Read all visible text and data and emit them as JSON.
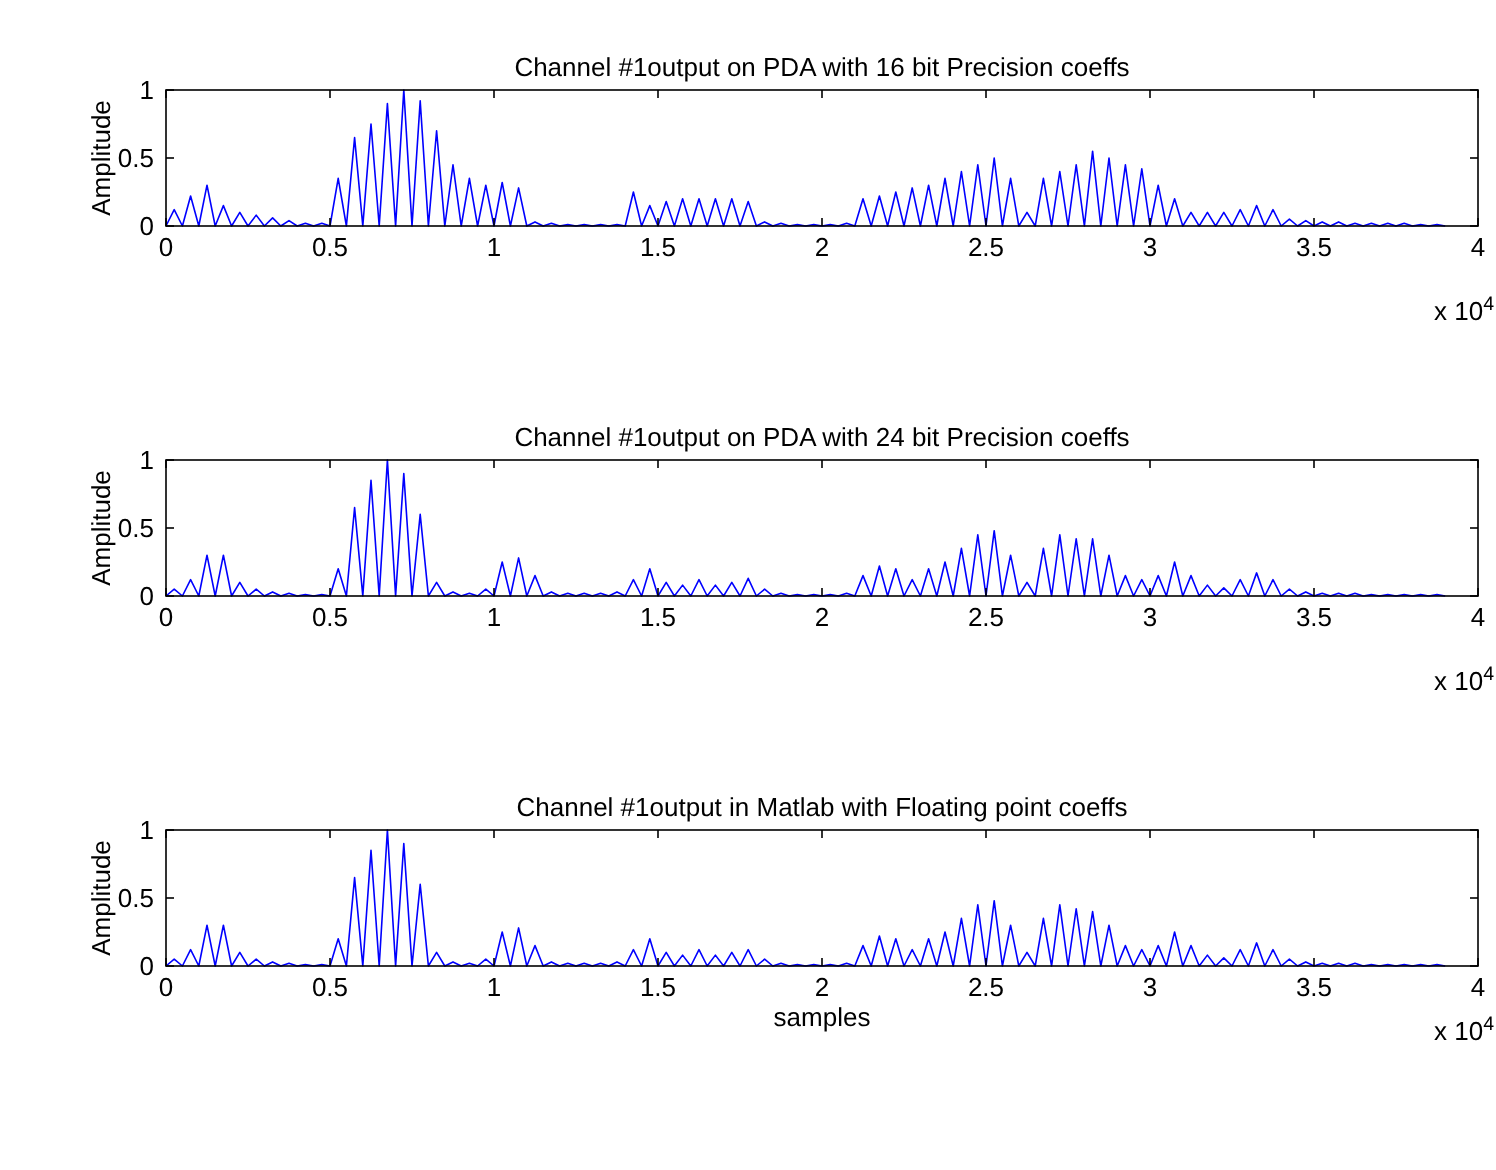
{
  "chart_data": [
    {
      "type": "line",
      "title": "Channel #1output on PDA with 16 bit Precision coeffs",
      "ylabel": "Amplitude",
      "annotations": [
        "x 10$^{4}$"
      ],
      "x": [
        0,
        0.025,
        0.05,
        0.075,
        0.1,
        0.125,
        0.15,
        0.175,
        0.2,
        0.225,
        0.25,
        0.275,
        0.3,
        0.325,
        0.35,
        0.375,
        0.4,
        0.425,
        0.45,
        0.475,
        0.5,
        0.525,
        0.55,
        0.575,
        0.6,
        0.625,
        0.65,
        0.675,
        0.7,
        0.725,
        0.75,
        0.775,
        0.8,
        0.825,
        0.85,
        0.875,
        0.9,
        0.925,
        0.95,
        0.975,
        1,
        1.025,
        1.05,
        1.075,
        1.1,
        1.125,
        1.15,
        1.175,
        1.2,
        1.225,
        1.25,
        1.275,
        1.3,
        1.325,
        1.35,
        1.375,
        1.4,
        1.425,
        1.45,
        1.475,
        1.5,
        1.525,
        1.55,
        1.575,
        1.6,
        1.625,
        1.65,
        1.675,
        1.7,
        1.725,
        1.75,
        1.775,
        1.8,
        1.825,
        1.85,
        1.875,
        1.9,
        1.925,
        1.95,
        1.975,
        2,
        2.025,
        2.05,
        2.075,
        2.1,
        2.125,
        2.15,
        2.175,
        2.2,
        2.225,
        2.25,
        2.275,
        2.3,
        2.325,
        2.35,
        2.375,
        2.4,
        2.425,
        2.45,
        2.475,
        2.5,
        2.525,
        2.55,
        2.575,
        2.6,
        2.625,
        2.65,
        2.675,
        2.7,
        2.725,
        2.75,
        2.775,
        2.8,
        2.825,
        2.85,
        2.875,
        2.9,
        2.925,
        2.95,
        2.975,
        3,
        3.025,
        3.05,
        3.075,
        3.1,
        3.125,
        3.15,
        3.175,
        3.2,
        3.225,
        3.25,
        3.275,
        3.3,
        3.325,
        3.35,
        3.375,
        3.4,
        3.425,
        3.45,
        3.475,
        3.5,
        3.525,
        3.55,
        3.575,
        3.6,
        3.625,
        3.65,
        3.675,
        3.7,
        3.725,
        3.75,
        3.775,
        3.8,
        3.825,
        3.85,
        3.875,
        3.9
      ],
      "series": [
        {
          "color": "#0000ff",
          "values": [
            0,
            0.12,
            0,
            0.22,
            0,
            0.3,
            0,
            0.15,
            0,
            0.1,
            0,
            0.08,
            0,
            0.06,
            0,
            0.04,
            0,
            0.02,
            0,
            0.02,
            0,
            0.35,
            0,
            0.65,
            0,
            0.75,
            0,
            0.9,
            0,
            1.0,
            0,
            0.92,
            0,
            0.7,
            0,
            0.45,
            0,
            0.35,
            0,
            0.3,
            0,
            0.32,
            0,
            0.28,
            0,
            0.03,
            0,
            0.02,
            0,
            0.01,
            0,
            0.01,
            0,
            0.01,
            0,
            0.01,
            0,
            0.25,
            0,
            0.15,
            0,
            0.18,
            0,
            0.2,
            0,
            0.2,
            0,
            0.2,
            0,
            0.2,
            0,
            0.18,
            0,
            0.03,
            0,
            0.02,
            0,
            0.01,
            0,
            0.01,
            0,
            0.01,
            0,
            0.02,
            0,
            0.2,
            0,
            0.22,
            0,
            0.25,
            0,
            0.28,
            0,
            0.3,
            0,
            0.35,
            0,
            0.4,
            0,
            0.45,
            0,
            0.5,
            0,
            0.35,
            0,
            0.1,
            0,
            0.35,
            0,
            0.4,
            0,
            0.45,
            0,
            0.55,
            0,
            0.5,
            0,
            0.45,
            0,
            0.42,
            0,
            0.3,
            0,
            0.2,
            0,
            0.1,
            0,
            0.1,
            0,
            0.1,
            0,
            0.12,
            0,
            0.15,
            0,
            0.12,
            0,
            0.05,
            0,
            0.04,
            0,
            0.03,
            0,
            0.03,
            0,
            0.02,
            0,
            0.02,
            0,
            0.02,
            0,
            0.02,
            0,
            0.01,
            0,
            0.01,
            0
          ]
        }
      ],
      "xlim": [
        0,
        4
      ],
      "xticks": [
        0,
        0.5,
        1,
        1.5,
        2,
        2.5,
        3,
        3.5,
        4
      ],
      "ylim": [
        0,
        1
      ],
      "yticks": [
        0,
        0.5,
        1
      ],
      "grid": false,
      "marker": "none",
      "line_style": "solid"
    },
    {
      "type": "line",
      "title": "Channel #1output on PDA with 24 bit Precision coeffs",
      "ylabel": "Amplitude",
      "annotations": [
        "x 10$^{4}$"
      ],
      "x": [
        0,
        0.025,
        0.05,
        0.075,
        0.1,
        0.125,
        0.15,
        0.175,
        0.2,
        0.225,
        0.25,
        0.275,
        0.3,
        0.325,
        0.35,
        0.375,
        0.4,
        0.425,
        0.45,
        0.475,
        0.5,
        0.525,
        0.55,
        0.575,
        0.6,
        0.625,
        0.65,
        0.675,
        0.7,
        0.725,
        0.75,
        0.775,
        0.8,
        0.825,
        0.85,
        0.875,
        0.9,
        0.925,
        0.95,
        0.975,
        1,
        1.025,
        1.05,
        1.075,
        1.1,
        1.125,
        1.15,
        1.175,
        1.2,
        1.225,
        1.25,
        1.275,
        1.3,
        1.325,
        1.35,
        1.375,
        1.4,
        1.425,
        1.45,
        1.475,
        1.5,
        1.525,
        1.55,
        1.575,
        1.6,
        1.625,
        1.65,
        1.675,
        1.7,
        1.725,
        1.75,
        1.775,
        1.8,
        1.825,
        1.85,
        1.875,
        1.9,
        1.925,
        1.95,
        1.975,
        2,
        2.025,
        2.05,
        2.075,
        2.1,
        2.125,
        2.15,
        2.175,
        2.2,
        2.225,
        2.25,
        2.275,
        2.3,
        2.325,
        2.35,
        2.375,
        2.4,
        2.425,
        2.45,
        2.475,
        2.5,
        2.525,
        2.55,
        2.575,
        2.6,
        2.625,
        2.65,
        2.675,
        2.7,
        2.725,
        2.75,
        2.775,
        2.8,
        2.825,
        2.85,
        2.875,
        2.9,
        2.925,
        2.95,
        2.975,
        3,
        3.025,
        3.05,
        3.075,
        3.1,
        3.125,
        3.15,
        3.175,
        3.2,
        3.225,
        3.25,
        3.275,
        3.3,
        3.325,
        3.35,
        3.375,
        3.4,
        3.425,
        3.45,
        3.475,
        3.5,
        3.525,
        3.55,
        3.575,
        3.6,
        3.625,
        3.65,
        3.675,
        3.7,
        3.725,
        3.75,
        3.775,
        3.8,
        3.825,
        3.85,
        3.875,
        3.9
      ],
      "series": [
        {
          "color": "#0000ff",
          "values": [
            0,
            0.05,
            0,
            0.12,
            0,
            0.3,
            0,
            0.3,
            0,
            0.1,
            0,
            0.05,
            0,
            0.03,
            0,
            0.02,
            0,
            0.01,
            0,
            0.01,
            0,
            0.2,
            0,
            0.65,
            0,
            0.85,
            0,
            1.0,
            0,
            0.9,
            0,
            0.6,
            0,
            0.1,
            0,
            0.03,
            0,
            0.02,
            0,
            0.05,
            0,
            0.25,
            0,
            0.28,
            0,
            0.15,
            0,
            0.03,
            0,
            0.02,
            0,
            0.02,
            0,
            0.02,
            0,
            0.03,
            0,
            0.12,
            0,
            0.2,
            0,
            0.1,
            0,
            0.08,
            0,
            0.12,
            0,
            0.08,
            0,
            0.1,
            0,
            0.13,
            0,
            0.05,
            0,
            0.02,
            0,
            0.01,
            0,
            0.01,
            0,
            0.01,
            0,
            0.02,
            0,
            0.15,
            0,
            0.22,
            0,
            0.2,
            0,
            0.12,
            0,
            0.2,
            0,
            0.25,
            0,
            0.35,
            0,
            0.45,
            0,
            0.48,
            0,
            0.3,
            0,
            0.1,
            0,
            0.35,
            0,
            0.45,
            0,
            0.42,
            0,
            0.42,
            0,
            0.3,
            0,
            0.15,
            0,
            0.12,
            0,
            0.15,
            0,
            0.25,
            0,
            0.15,
            0,
            0.08,
            0,
            0.06,
            0,
            0.12,
            0,
            0.17,
            0,
            0.12,
            0,
            0.05,
            0,
            0.03,
            0,
            0.02,
            0,
            0.02,
            0,
            0.02,
            0,
            0.01,
            0,
            0.01,
            0,
            0.01,
            0,
            0.01,
            0,
            0.01,
            0
          ]
        }
      ],
      "xlim": [
        0,
        4
      ],
      "xticks": [
        0,
        0.5,
        1,
        1.5,
        2,
        2.5,
        3,
        3.5,
        4
      ],
      "ylim": [
        0,
        1
      ],
      "yticks": [
        0,
        0.5,
        1
      ],
      "grid": false,
      "marker": "none",
      "line_style": "solid"
    },
    {
      "type": "line",
      "title": "Channel #1output in Matlab with Floating point coeffs",
      "xlabel": "samples",
      "ylabel": "Amplitude",
      "annotations": [
        "x 10$^{4}$"
      ],
      "x": [
        0,
        0.025,
        0.05,
        0.075,
        0.1,
        0.125,
        0.15,
        0.175,
        0.2,
        0.225,
        0.25,
        0.275,
        0.3,
        0.325,
        0.35,
        0.375,
        0.4,
        0.425,
        0.45,
        0.475,
        0.5,
        0.525,
        0.55,
        0.575,
        0.6,
        0.625,
        0.65,
        0.675,
        0.7,
        0.725,
        0.75,
        0.775,
        0.8,
        0.825,
        0.85,
        0.875,
        0.9,
        0.925,
        0.95,
        0.975,
        1,
        1.025,
        1.05,
        1.075,
        1.1,
        1.125,
        1.15,
        1.175,
        1.2,
        1.225,
        1.25,
        1.275,
        1.3,
        1.325,
        1.35,
        1.375,
        1.4,
        1.425,
        1.45,
        1.475,
        1.5,
        1.525,
        1.55,
        1.575,
        1.6,
        1.625,
        1.65,
        1.675,
        1.7,
        1.725,
        1.75,
        1.775,
        1.8,
        1.825,
        1.85,
        1.875,
        1.9,
        1.925,
        1.95,
        1.975,
        2,
        2.025,
        2.05,
        2.075,
        2.1,
        2.125,
        2.15,
        2.175,
        2.2,
        2.225,
        2.25,
        2.275,
        2.3,
        2.325,
        2.35,
        2.375,
        2.4,
        2.425,
        2.45,
        2.475,
        2.5,
        2.525,
        2.55,
        2.575,
        2.6,
        2.625,
        2.65,
        2.675,
        2.7,
        2.725,
        2.75,
        2.775,
        2.8,
        2.825,
        2.85,
        2.875,
        2.9,
        2.925,
        2.95,
        2.975,
        3,
        3.025,
        3.05,
        3.075,
        3.1,
        3.125,
        3.15,
        3.175,
        3.2,
        3.225,
        3.25,
        3.275,
        3.3,
        3.325,
        3.35,
        3.375,
        3.4,
        3.425,
        3.45,
        3.475,
        3.5,
        3.525,
        3.55,
        3.575,
        3.6,
        3.625,
        3.65,
        3.675,
        3.7,
        3.725,
        3.75,
        3.775,
        3.8,
        3.825,
        3.85,
        3.875,
        3.9
      ],
      "series": [
        {
          "color": "#0000ff",
          "values": [
            0,
            0.05,
            0,
            0.12,
            0,
            0.3,
            0,
            0.3,
            0,
            0.1,
            0,
            0.05,
            0,
            0.03,
            0,
            0.02,
            0,
            0.01,
            0,
            0.01,
            0,
            0.2,
            0,
            0.65,
            0,
            0.85,
            0,
            1.0,
            0,
            0.9,
            0,
            0.6,
            0,
            0.1,
            0,
            0.03,
            0,
            0.02,
            0,
            0.05,
            0,
            0.25,
            0,
            0.28,
            0,
            0.15,
            0,
            0.03,
            0,
            0.02,
            0,
            0.02,
            0,
            0.02,
            0,
            0.03,
            0,
            0.12,
            0,
            0.2,
            0,
            0.1,
            0,
            0.08,
            0,
            0.12,
            0,
            0.08,
            0,
            0.1,
            0,
            0.12,
            0,
            0.05,
            0,
            0.02,
            0,
            0.01,
            0,
            0.01,
            0,
            0.01,
            0,
            0.02,
            0,
            0.15,
            0,
            0.22,
            0,
            0.2,
            0,
            0.12,
            0,
            0.2,
            0,
            0.25,
            0,
            0.35,
            0,
            0.45,
            0,
            0.48,
            0,
            0.3,
            0,
            0.1,
            0,
            0.35,
            0,
            0.45,
            0,
            0.42,
            0,
            0.4,
            0,
            0.3,
            0,
            0.15,
            0,
            0.12,
            0,
            0.15,
            0,
            0.25,
            0,
            0.15,
            0,
            0.08,
            0,
            0.06,
            0,
            0.12,
            0,
            0.17,
            0,
            0.12,
            0,
            0.05,
            0,
            0.03,
            0,
            0.02,
            0,
            0.02,
            0,
            0.02,
            0,
            0.01,
            0,
            0.01,
            0,
            0.01,
            0,
            0.01,
            0,
            0.01,
            0
          ]
        }
      ],
      "xlim": [
        0,
        4
      ],
      "xticks": [
        0,
        0.5,
        1,
        1.5,
        2,
        2.5,
        3,
        3.5,
        4
      ],
      "ylim": [
        0,
        1
      ],
      "yticks": [
        0,
        0.5,
        1
      ],
      "grid": false,
      "marker": "none",
      "line_style": "solid"
    }
  ]
}
